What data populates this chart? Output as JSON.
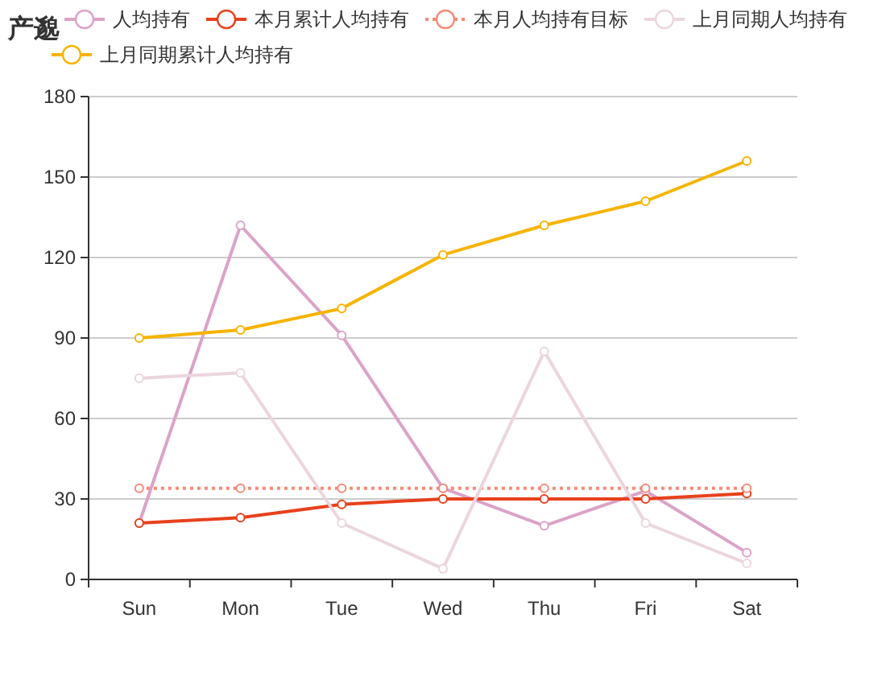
{
  "chart_data": {
    "type": "line",
    "title": "产邈",
    "categories": [
      "Sun",
      "Mon",
      "Tue",
      "Wed",
      "Thu",
      "Fri",
      "Sat"
    ],
    "series": [
      {
        "name": "人均持有",
        "color": "#dba3c8",
        "values": [
          21,
          132,
          91,
          34,
          20,
          33,
          10
        ]
      },
      {
        "name": "本月累计人均持有",
        "color": "#e8401c",
        "values": [
          21,
          23,
          28,
          30,
          30,
          30,
          32
        ]
      },
      {
        "name": "本月人均持有目标",
        "color": "#f58a78",
        "values": [
          34,
          34,
          34,
          34,
          34,
          34,
          34
        ],
        "line_style": "dotted"
      },
      {
        "name": "上月同期人均持有",
        "color": "#ecd5de",
        "values": [
          75,
          77,
          21,
          4,
          85,
          21,
          6
        ]
      },
      {
        "name": "上月同期累计人均持有",
        "color": "#f5b400",
        "values": [
          90,
          93,
          101,
          121,
          132,
          141,
          156
        ]
      }
    ],
    "ylim": [
      0,
      180
    ],
    "yticks": [
      0,
      30,
      60,
      90,
      120,
      150,
      180
    ],
    "grid": "y",
    "legend": "top",
    "marker": "circle",
    "line_style": "solid"
  }
}
